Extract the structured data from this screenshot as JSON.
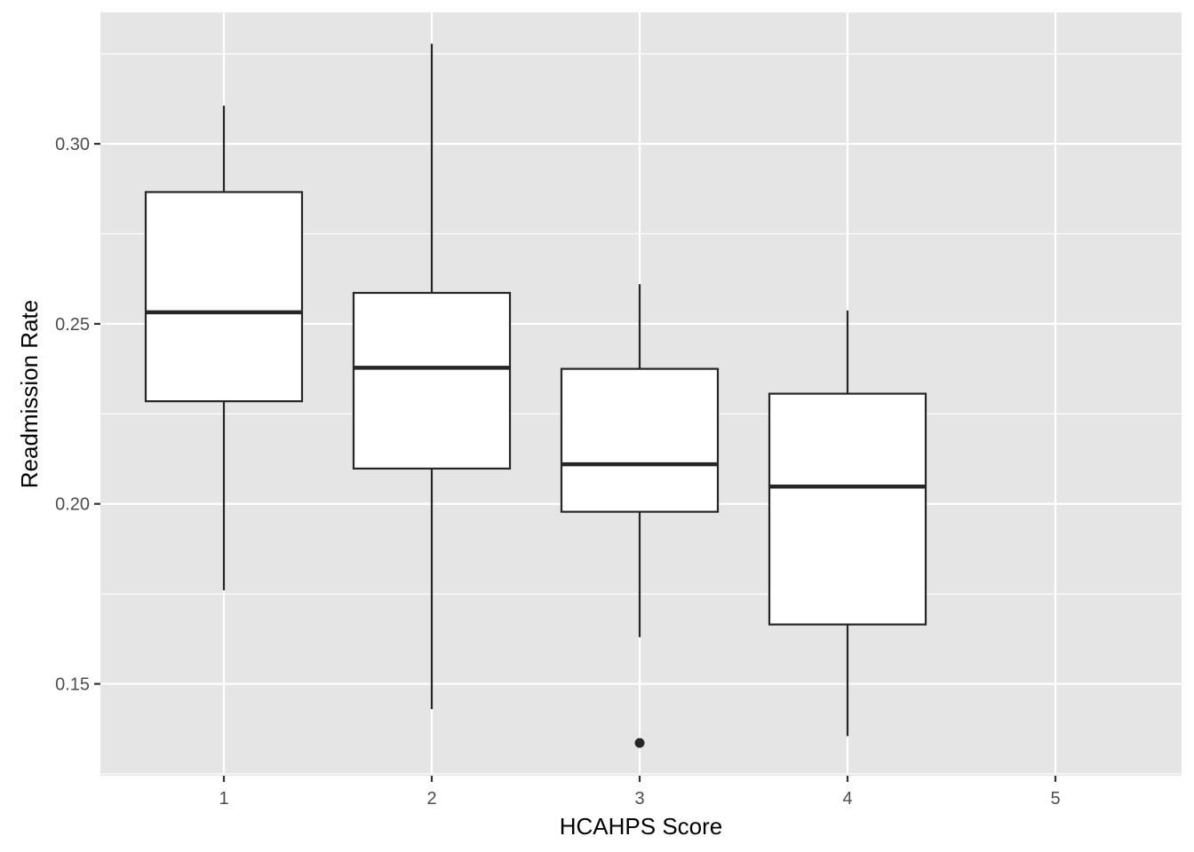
{
  "chart_data": {
    "type": "boxplot",
    "xlabel": "HCAHPS Score",
    "ylabel": "Readmission Rate",
    "x_categories": [
      "1",
      "2",
      "3",
      "4",
      "5"
    ],
    "y_ticks": [
      "0.15",
      "0.20",
      "0.25",
      "0.30"
    ],
    "ylim": [
      0.1245,
      0.3365
    ],
    "grid": true,
    "legend": "none",
    "boxes": [
      {
        "category": "1",
        "whisker_low": 0.176,
        "q1": 0.2285,
        "median": 0.2532,
        "q3": 0.2866,
        "whisker_high": 0.3106,
        "outliers": []
      },
      {
        "category": "2",
        "whisker_low": 0.143,
        "q1": 0.2098,
        "median": 0.2378,
        "q3": 0.2586,
        "whisker_high": 0.3278,
        "outliers": []
      },
      {
        "category": "3",
        "whisker_low": 0.163,
        "q1": 0.1978,
        "median": 0.211,
        "q3": 0.2375,
        "whisker_high": 0.261,
        "outliers": [
          0.1336
        ]
      },
      {
        "category": "4",
        "whisker_low": 0.1355,
        "q1": 0.1665,
        "median": 0.2048,
        "q3": 0.2306,
        "whisker_high": 0.2537,
        "outliers": []
      }
    ],
    "colors": {
      "panel_background": "#e5e5e5",
      "grid": "#ffffff",
      "box_fill": "#ffffff",
      "box_stroke": "#262626"
    }
  }
}
